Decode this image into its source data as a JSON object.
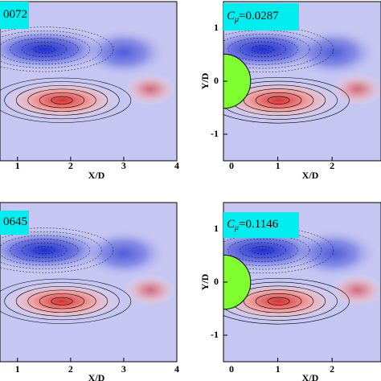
{
  "chart_data": [
    {
      "type": "contour",
      "annotation": "0072",
      "xlabel": "X/D",
      "xlim": [
        0.67,
        4
      ],
      "ylim": [
        -1.5,
        1.5
      ],
      "xticks": [
        1,
        2,
        3,
        4
      ]
    },
    {
      "type": "contour",
      "annotation_symbol": "C",
      "annotation_sub": "μ",
      "annotation": "=0.0287",
      "xlabel": "X/D",
      "ylabel": "Y/D",
      "xlim": [
        0,
        2.9
      ],
      "ylim": [
        -1.5,
        1.5
      ],
      "xticks": [
        0,
        1,
        2
      ],
      "yticks": [
        1,
        0,
        -1
      ]
    },
    {
      "type": "contour",
      "annotation": "0645",
      "xlabel": "X/D",
      "xlim": [
        0.67,
        4
      ],
      "ylim": [
        -1.5,
        1.5
      ],
      "xticks": [
        1,
        2,
        3,
        4
      ]
    },
    {
      "type": "contour",
      "annotation_symbol": "C",
      "annotation_sub": "μ",
      "annotation": "=0.1146",
      "xlabel": "X/D",
      "ylabel": "Y/D",
      "xlim": [
        0,
        2.9
      ],
      "ylim": [
        -1.5,
        1.5
      ],
      "xticks": [
        0,
        1,
        2
      ],
      "yticks": [
        1,
        0,
        -1
      ]
    }
  ]
}
